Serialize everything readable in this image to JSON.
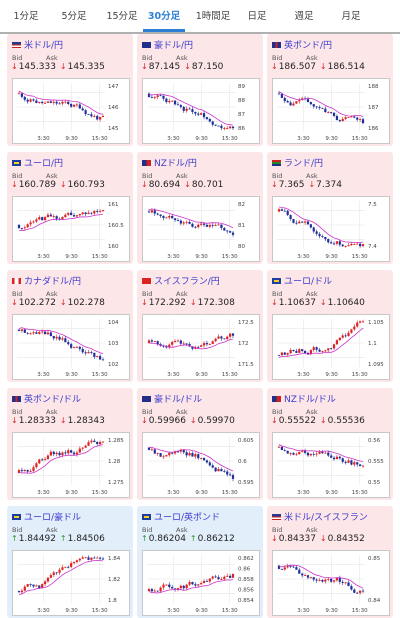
{
  "tabs": [
    "1分足",
    "5分足",
    "15分足",
    "30分足",
    "1時間足",
    "日足",
    "週足",
    "月足"
  ],
  "active_tab": "30分足",
  "labels": {
    "bid": "Bid",
    "ask": "Ask"
  },
  "xticks": [
    "3:30",
    "9:30",
    "15:30"
  ],
  "colors": {
    "up": "#dd2222",
    "down": "#1f2f9a",
    "ma": "#cc33cc",
    "pair_text": "#3a3acb",
    "card_red": "#fde6e8",
    "card_blue": "#e3eefb"
  },
  "cards": [
    {
      "name": "米ドル/円",
      "flag": "flag-us",
      "dir": "down",
      "bid": "145.333",
      "ask": "145.335",
      "bg": "red",
      "yticks": [
        "147",
        "146",
        "145"
      ],
      "trend": "down"
    },
    {
      "name": "豪ドル/円",
      "flag": "flag-au",
      "dir": "down",
      "bid": "87.145",
      "ask": "87.150",
      "bg": "red",
      "yticks": [
        "89",
        "88",
        "87",
        "86"
      ],
      "trend": "down"
    },
    {
      "name": "英ポンド/円",
      "flag": "flag-gb",
      "dir": "down",
      "bid": "186.507",
      "ask": "186.514",
      "bg": "red",
      "yticks": [
        "188",
        "187",
        "186"
      ],
      "trend": "down"
    },
    {
      "name": "ユーロ/円",
      "flag": "flag-eu",
      "dir": "down",
      "bid": "160.789",
      "ask": "160.793",
      "bg": "red",
      "yticks": [
        "161",
        "160.5",
        "160"
      ],
      "trend": "flat"
    },
    {
      "name": "NZドル/円",
      "flag": "flag-nz",
      "dir": "down",
      "bid": "80.694",
      "ask": "80.701",
      "bg": "red",
      "yticks": [
        "82",
        "81",
        "80"
      ],
      "trend": "down"
    },
    {
      "name": "ランド/円",
      "flag": "flag-za",
      "dir": "down",
      "bid": "7.365",
      "ask": "7.374",
      "bg": "red",
      "yticks": [
        "7.5",
        "7.4"
      ],
      "trend": "down"
    },
    {
      "name": "カナダドル/円",
      "flag": "flag-ca",
      "dir": "down",
      "bid": "102.272",
      "ask": "102.278",
      "bg": "red",
      "yticks": [
        "104",
        "103",
        "102"
      ],
      "trend": "down"
    },
    {
      "name": "スイスフラン/円",
      "flag": "flag-ch",
      "dir": "down",
      "bid": "172.292",
      "ask": "172.308",
      "bg": "red",
      "yticks": [
        "172.5",
        "172",
        "171.5"
      ],
      "trend": "flat"
    },
    {
      "name": "ユーロ/ドル",
      "flag": "flag-eu",
      "dir": "down",
      "bid": "1.10637",
      "ask": "1.10640",
      "bg": "red",
      "yticks": [
        "1.105",
        "1.1",
        "1.095"
      ],
      "trend": "up"
    },
    {
      "name": "英ポンド/ドル",
      "flag": "flag-gb",
      "dir": "down",
      "bid": "1.28333",
      "ask": "1.28343",
      "bg": "red",
      "yticks": [
        "1.285",
        "1.28",
        "1.275"
      ],
      "trend": "up"
    },
    {
      "name": "豪ドル/ドル",
      "flag": "flag-au",
      "dir": "down",
      "bid": "0.59966",
      "ask": "0.59970",
      "bg": "red",
      "yticks": [
        "0.605",
        "0.6",
        "0.595"
      ],
      "trend": "down"
    },
    {
      "name": "NZドル/ドル",
      "flag": "flag-nz",
      "dir": "down",
      "bid": "0.55522",
      "ask": "0.55536",
      "bg": "red",
      "yticks": [
        "0.56",
        "0.555",
        "0.55"
      ],
      "trend": "down"
    },
    {
      "name": "ユーロ/豪ドル",
      "flag": "flag-eu",
      "dir": "up",
      "bid": "1.84492",
      "ask": "1.84506",
      "bg": "blue",
      "yticks": [
        "1.84",
        "1.82",
        "1.8"
      ],
      "trend": "up"
    },
    {
      "name": "ユーロ/英ポンド",
      "flag": "flag-eu",
      "dir": "up",
      "bid": "0.86204",
      "ask": "0.86212",
      "bg": "blue",
      "yticks": [
        "0.862",
        "0.86",
        "0.858",
        "0.856",
        "0.854"
      ],
      "trend": "up"
    },
    {
      "name": "米ドル/スイスフラン",
      "flag": "flag-us",
      "dir": "down",
      "bid": "0.84337",
      "ask": "0.84352",
      "bg": "red",
      "yticks": [
        "0.85",
        "0.84"
      ],
      "trend": "down"
    }
  ]
}
